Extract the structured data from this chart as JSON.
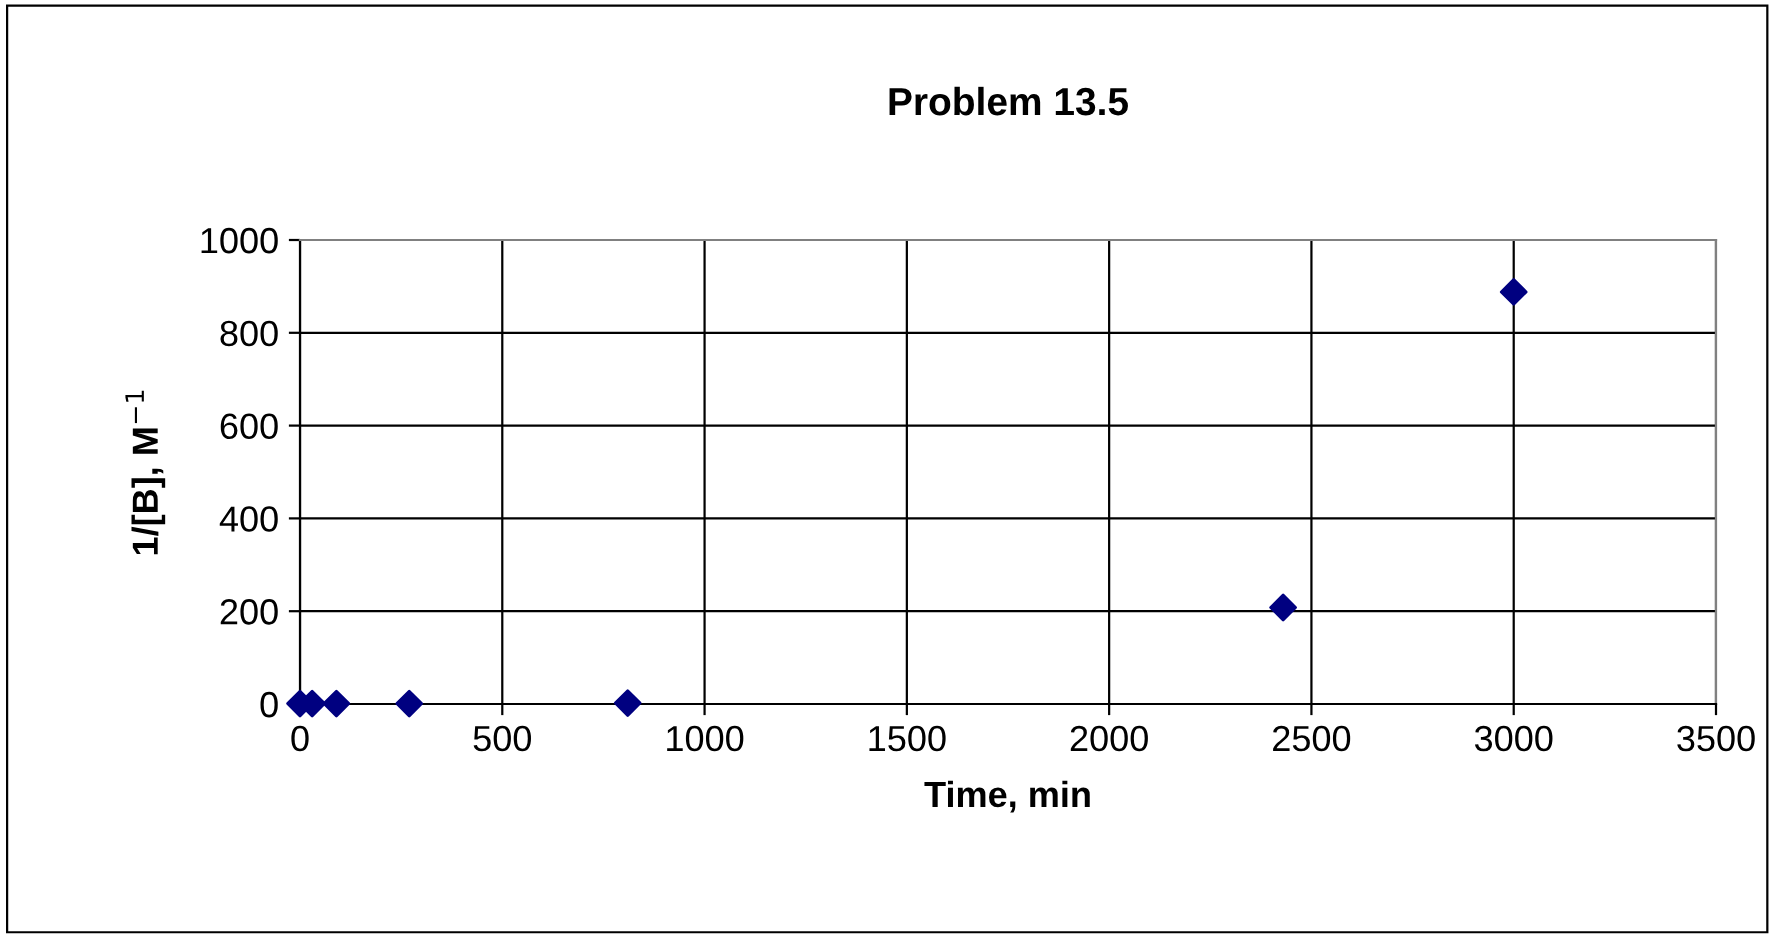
{
  "chart_data": {
    "type": "scatter",
    "title": "Problem 13.5",
    "xlabel": "Time, min",
    "ylabel": "1/[B], M$^{−1}$",
    "x": [
      0,
      30,
      90,
      270,
      810,
      2430,
      3000
    ],
    "series": [
      {
        "color": "#000080",
        "values": [
          1,
          1,
          1,
          1,
          2,
          208,
          888
        ]
      }
    ],
    "xlim": [
      0,
      3500
    ],
    "xticks": [
      0,
      500,
      1000,
      1500,
      2000,
      2500,
      3000,
      3500
    ],
    "ylim": [
      0,
      1000
    ],
    "yticks": [
      0,
      200,
      400,
      600,
      800,
      1000
    ],
    "grid": true,
    "marker": "diamond",
    "legend": false
  }
}
